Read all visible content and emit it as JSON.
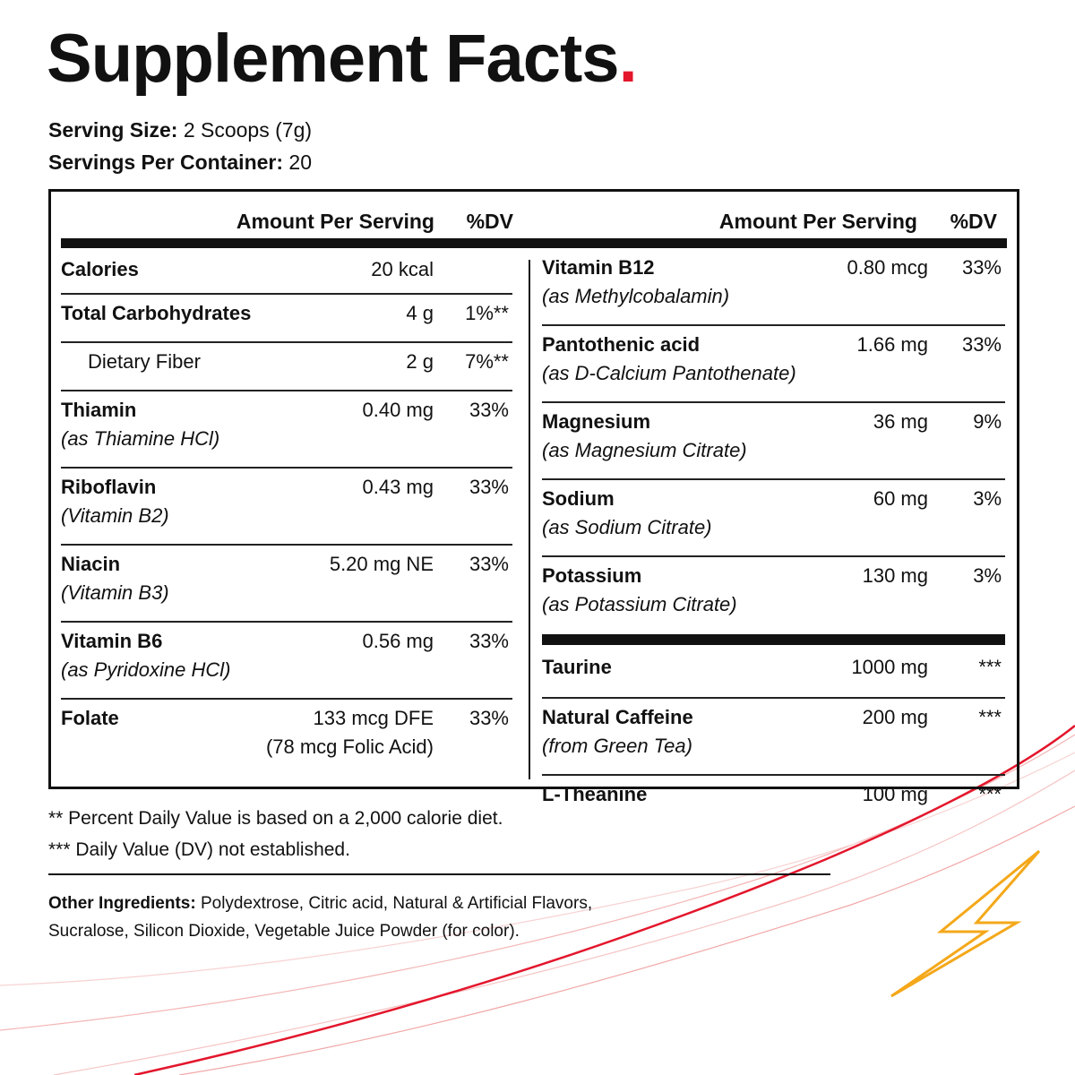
{
  "header": {
    "title": "Supplement Facts",
    "title_mark": ".",
    "serving_size_label": "Serving Size:",
    "serving_size": "2 Scoops (7g)",
    "servings_label": "Servings Per Container:",
    "servings": "20"
  },
  "table": {
    "left": {
      "head": {
        "amount": "Amount Per Serving",
        "dv": "%DV"
      },
      "rows": [
        {
          "name": "Calories",
          "amount": "20 kcal"
        },
        {
          "name": "Total Carbohydrates",
          "amount": "4 g",
          "dv": "1%**"
        },
        {
          "name": "Dietary Fiber",
          "amount": "2 g",
          "dv": "7%**",
          "indent": true
        },
        {
          "name": "Thiamin",
          "sub": "(as Thiamine HCl)",
          "amount": "0.40 mg",
          "dv": "33%"
        },
        {
          "name": "Riboflavin",
          "sub": "(Vitamin B2)",
          "amount": "0.43 mg",
          "dv": "33%"
        },
        {
          "name": "Niacin",
          "sub": "(Vitamin B3)",
          "amount": "5.20 mg NE",
          "dv": "33%"
        },
        {
          "name": "Vitamin B6",
          "sub": "(as Pyridoxine HCl)",
          "amount": "0.56 mg",
          "dv": "33%"
        },
        {
          "name": "Folate",
          "amount": "133 mcg DFE",
          "amount_sub": "(78 mcg Folic Acid)",
          "dv": "33%"
        }
      ]
    },
    "right": {
      "head": {
        "amount": "Amount Per Serving",
        "dv": "%DV"
      },
      "sections": [
        {
          "rows": [
            {
              "name": "Vitamin B12",
              "sub": "(as Methylcobalamin)",
              "amount": "0.80 mcg",
              "dv": "33%"
            },
            {
              "name": "Pantothenic acid",
              "sub": "(as D-Calcium Pantothenate)",
              "amount": "1.66 mg",
              "dv": "33%"
            },
            {
              "name": "Magnesium",
              "sub": "(as Magnesium Citrate)",
              "amount": "36 mg",
              "dv": "9%"
            },
            {
              "name": "Sodium",
              "sub": "(as Sodium Citrate)",
              "amount": "60 mg",
              "dv": "3%"
            },
            {
              "name": "Potassium",
              "sub": "(as Potassium Citrate)",
              "amount": "130 mg",
              "dv": "3%"
            }
          ]
        },
        {
          "rows": [
            {
              "name": "Taurine",
              "amount": "1000 mg",
              "dv": "***"
            },
            {
              "name": "Natural Caffeine",
              "sub": "(from Green Tea)",
              "amount": "200 mg",
              "dv": "***"
            },
            {
              "name": "L-Theanine",
              "amount": "100 mg",
              "dv": "***"
            }
          ]
        }
      ]
    }
  },
  "footnotes": [
    "** Percent Daily Value is based on a 2,000 calorie diet.",
    "*** Daily Value (DV) not established."
  ],
  "other_ingredients": {
    "label": "Other Ingredients:",
    "lines": [
      "Polydextrose, Citric acid, Natural & Artificial Flavors,",
      "Sucralose, Silicon Dioxide, Vegetable Juice Powder (for color)."
    ]
  }
}
